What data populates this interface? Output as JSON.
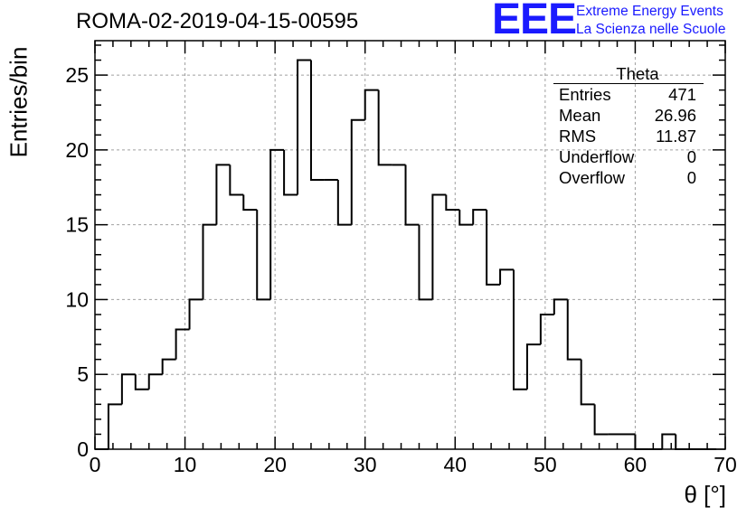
{
  "title": "ROMA-02-2019-04-15-00595",
  "logo": {
    "letters": "EEE",
    "line1": "Extreme Energy Events",
    "line2": "La Scienza nelle Scuole",
    "color": "#1a1aff"
  },
  "stats": {
    "title": "Theta",
    "rows": [
      {
        "label": "Entries",
        "value": "471"
      },
      {
        "label": "Mean",
        "value": "26.96"
      },
      {
        "label": "RMS",
        "value": "11.87"
      },
      {
        "label": "Underflow",
        "value": "0"
      },
      {
        "label": "Overflow",
        "value": "0"
      }
    ]
  },
  "chart_data": {
    "type": "bar",
    "style": "step-histogram",
    "title": "ROMA-02-2019-04-15-00595",
    "xlabel": "θ [°]",
    "ylabel": "Entries/bin",
    "xlim": [
      0,
      70
    ],
    "ylim": [
      0,
      27.3
    ],
    "xticks": [
      0,
      10,
      20,
      30,
      40,
      50,
      60,
      70
    ],
    "yticks": [
      0,
      5,
      10,
      15,
      20,
      25
    ],
    "grid": true,
    "bin_width": 1.5,
    "bin_start": 0,
    "values": [
      0,
      3,
      5,
      4,
      5,
      6,
      8,
      10,
      15,
      19,
      17,
      16,
      10,
      20,
      17,
      26,
      18,
      18,
      15,
      22,
      24,
      19,
      19,
      15,
      10,
      17,
      16,
      15,
      16,
      11,
      12,
      4,
      7,
      9,
      10,
      6,
      3,
      1,
      1,
      1,
      0,
      0,
      1,
      0,
      0,
      0,
      0
    ]
  }
}
